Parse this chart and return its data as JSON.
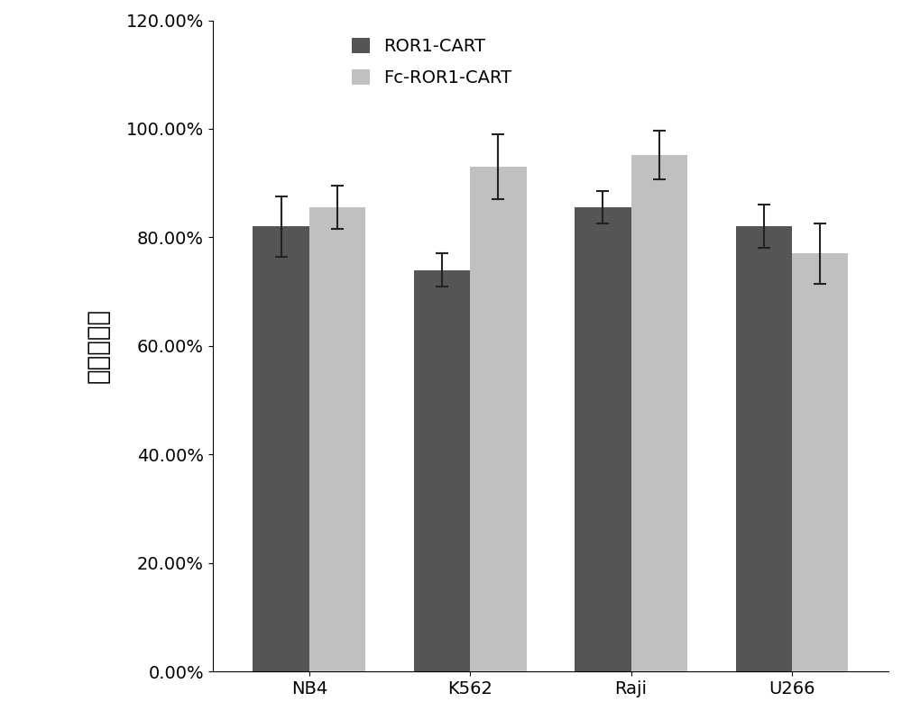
{
  "categories": [
    "NB4",
    "K562",
    "Raji",
    "U266"
  ],
  "series": [
    {
      "label": "ROR1-CART",
      "values": [
        0.82,
        0.74,
        0.855,
        0.82
      ],
      "errors": [
        0.055,
        0.03,
        0.03,
        0.04
      ],
      "color": "#555555"
    },
    {
      "label": "Fc-ROR1-CART",
      "values": [
        0.855,
        0.93,
        0.952,
        0.77
      ],
      "errors": [
        0.04,
        0.06,
        0.045,
        0.055
      ],
      "color": "#c0c0c0"
    }
  ],
  "ylabel": "细胞杀伤率",
  "ylim": [
    0.0,
    1.2
  ],
  "yticks": [
    0.0,
    0.2,
    0.4,
    0.6,
    0.8,
    1.0,
    1.2
  ],
  "ytick_labels": [
    "0.00%",
    "20.00%",
    "40.00%",
    "60.00%",
    "80.00%",
    "100.00%",
    "120.00%"
  ],
  "bar_width": 0.35,
  "background_color": "#ffffff",
  "legend_fontsize": 14,
  "tick_fontsize": 14,
  "ylabel_fontsize": 20
}
